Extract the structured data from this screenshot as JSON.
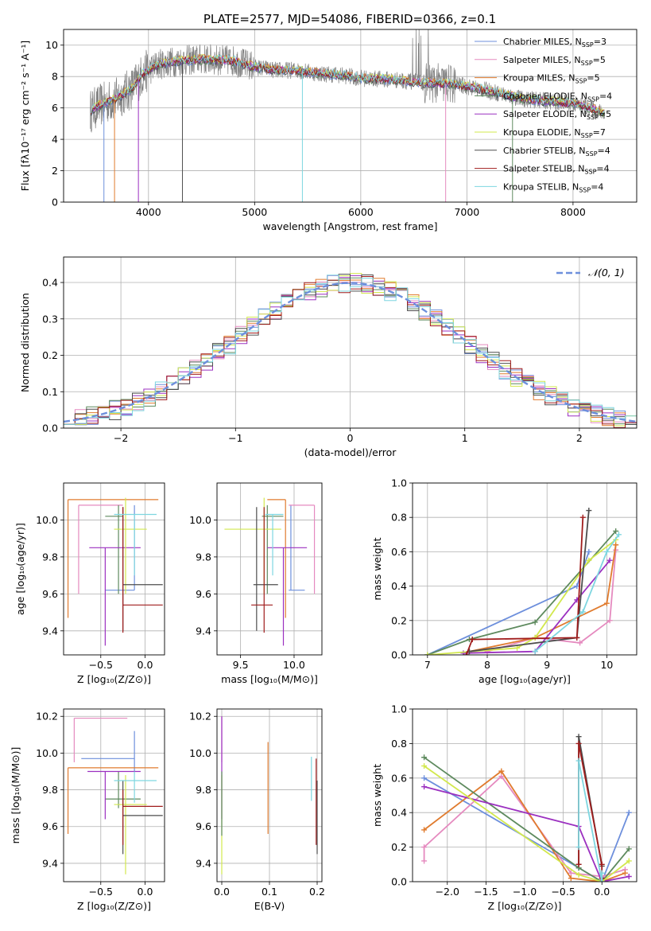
{
  "title": "PLATE=2577, MJD=54086, FIBERID=0366, z=0.1",
  "colors": {
    "Chabrier MILES": "#6d8fdc",
    "Salpeter MILES": "#e58abf",
    "Kroupa MILES": "#e07b2e",
    "Chabrier ELODIE": "#5e8a5e",
    "Salpeter ELODIE": "#9b30c0",
    "Kroupa ELODIE": "#d2e84d",
    "Chabrier STELIB": "#4d4d4d",
    "Salpeter STELIB": "#a01c1c",
    "Kroupa STELIB": "#7ed6e0",
    "spectrum": "#808080",
    "grid": "#b0b0b0"
  },
  "legend1": [
    {
      "prefix": "Chabrier MILES, N",
      "sub": "SSP",
      "suffix": "=3",
      "key": "Chabrier MILES"
    },
    {
      "prefix": "Salpeter MILES, N",
      "sub": "SSP",
      "suffix": "=5",
      "key": "Salpeter MILES"
    },
    {
      "prefix": "Kroupa MILES, N",
      "sub": "SSP",
      "suffix": "=5",
      "key": "Kroupa MILES"
    },
    {
      "prefix": "Chabrier ELODIE, N",
      "sub": "SSP",
      "suffix": "=4",
      "key": "Chabrier ELODIE"
    },
    {
      "prefix": "Salpeter ELODIE, N",
      "sub": "SSP",
      "suffix": "=5",
      "key": "Salpeter ELODIE"
    },
    {
      "prefix": "Kroupa ELODIE, N",
      "sub": "SSP",
      "suffix": "=7",
      "key": "Kroupa ELODIE"
    },
    {
      "prefix": "Chabrier STELIB, N",
      "sub": "SSP",
      "suffix": "=4",
      "key": "Chabrier STELIB"
    },
    {
      "prefix": "Salpeter STELIB, N",
      "sub": "SSP",
      "suffix": "=4",
      "key": "Salpeter STELIB"
    },
    {
      "prefix": "Kroupa STELIB, N",
      "sub": "SSP",
      "suffix": "=4",
      "key": "Kroupa STELIB"
    }
  ],
  "legend2": "𝒩(0, 1)",
  "chart_data": [
    {
      "id": "spectrum",
      "type": "line",
      "xlabel": "wavelength [Angstrom, rest frame]",
      "ylabel": "Flux [fλ10⁻¹⁷ erg cm⁻² s⁻¹ A⁻¹]",
      "xlim": [
        3200,
        8600
      ],
      "ylim": [
        0,
        11
      ],
      "xticks": [
        "4000",
        "5000",
        "6000",
        "7000",
        "8000"
      ],
      "yticks": [
        "0",
        "2",
        "4",
        "6",
        "8",
        "10"
      ],
      "continuum": [
        [
          3450,
          5.8
        ],
        [
          3550,
          6.2
        ],
        [
          3700,
          6.6
        ],
        [
          3850,
          7.3
        ],
        [
          3950,
          8.2
        ],
        [
          4100,
          8.8
        ],
        [
          4300,
          9.0
        ],
        [
          4500,
          9.1
        ],
        [
          4800,
          9.0
        ],
        [
          5000,
          8.6
        ],
        [
          5200,
          8.4
        ],
        [
          5400,
          8.4
        ],
        [
          5600,
          8.2
        ],
        [
          5800,
          8.1
        ],
        [
          6000,
          7.9
        ],
        [
          6300,
          7.8
        ],
        [
          6600,
          7.6
        ],
        [
          6900,
          7.5
        ],
        [
          7200,
          7.1
        ],
        [
          7500,
          6.6
        ],
        [
          7800,
          6.4
        ],
        [
          8000,
          6.3
        ],
        [
          8200,
          5.9
        ],
        [
          8300,
          5.6
        ]
      ],
      "absorption_features": [
        3580,
        3680,
        3905,
        4320,
        5450,
        6800,
        7430
      ]
    },
    {
      "id": "residuals",
      "type": "histogram",
      "xlabel": "(data-model)/error",
      "ylabel": "Normed distribution",
      "xlim": [
        -2.5,
        2.5
      ],
      "ylim": [
        0,
        0.47
      ],
      "xticks": [
        "−2",
        "−1",
        "0",
        "1",
        "2"
      ],
      "yticks": [
        "0.0",
        "0.1",
        "0.2",
        "0.3",
        "0.4"
      ],
      "bin_width": 0.1
    },
    {
      "id": "age_vs_Z",
      "type": "errorbar",
      "xlabel": "Z [log₁₀(Z/Z⊙)]",
      "ylabel": "age  [log₁₀(age/yr)]",
      "xlim": [
        -0.92,
        0.22
      ],
      "ylim": [
        9.27,
        10.2
      ],
      "xticks": [
        "−0.5",
        "0.0"
      ],
      "yticks": [
        "9.4",
        "9.6",
        "9.8",
        "10.0"
      ],
      "points": [
        {
          "s": "Chabrier MILES",
          "x": -0.12,
          "xe": [
            -0.45,
            -0.12
          ],
          "y": 9.62,
          "ye": [
            9.62,
            10.08
          ]
        },
        {
          "s": "Salpeter MILES",
          "x": -0.75,
          "xe": [
            -0.75,
            -0.25
          ],
          "y": 10.08,
          "ye": [
            9.6,
            10.08
          ]
        },
        {
          "s": "Kroupa MILES",
          "x": -0.87,
          "xe": [
            -0.87,
            0.15
          ],
          "y": 10.11,
          "ye": [
            9.47,
            10.11
          ]
        },
        {
          "s": "Chabrier ELODIE",
          "x": -0.3,
          "xe": [
            -0.45,
            -0.25
          ],
          "y": 10.02,
          "ye": [
            9.6,
            10.08
          ]
        },
        {
          "s": "Salpeter ELODIE",
          "x": -0.45,
          "xe": [
            -0.63,
            -0.05
          ],
          "y": 9.85,
          "ye": [
            9.32,
            9.85
          ]
        },
        {
          "s": "Kroupa ELODIE",
          "x": -0.22,
          "xe": [
            -0.35,
            0.02
          ],
          "y": 9.95,
          "ye": [
            9.6,
            10.12
          ]
        },
        {
          "s": "Chabrier STELIB",
          "x": -0.25,
          "xe": [
            -0.25,
            0.2
          ],
          "y": 9.65,
          "ye": [
            9.4,
            10.07
          ]
        },
        {
          "s": "Salpeter STELIB",
          "x": -0.25,
          "xe": [
            -0.25,
            0.2
          ],
          "y": 9.54,
          "ye": [
            9.39,
            10.07
          ]
        },
        {
          "s": "Kroupa STELIB",
          "x": -0.12,
          "xe": [
            -0.35,
            0.13
          ],
          "y": 10.03,
          "ye": [
            9.7,
            10.03
          ]
        }
      ]
    },
    {
      "id": "age_vs_mass",
      "type": "errorbar",
      "xlabel": "mass [log₁₀(M/M⊙)]",
      "ylabel": "",
      "xlim": [
        9.28,
        10.26
      ],
      "ylim": [
        9.27,
        10.2
      ],
      "xticks": [
        "9.5",
        "10.0"
      ],
      "yticks": [
        "9.4",
        "9.6",
        "9.8",
        "10.0"
      ],
      "points": [
        {
          "s": "Chabrier MILES",
          "x": 9.97,
          "xe": [
            9.95,
            10.1
          ],
          "y": 9.62,
          "ye": [
            9.62,
            10.08
          ]
        },
        {
          "s": "Salpeter MILES",
          "x": 10.19,
          "xe": [
            9.95,
            10.19
          ],
          "y": 10.08,
          "ye": [
            9.6,
            10.08
          ]
        },
        {
          "s": "Kroupa MILES",
          "x": 9.92,
          "xe": [
            9.75,
            9.92
          ],
          "y": 10.11,
          "ye": [
            9.47,
            10.11
          ]
        },
        {
          "s": "Chabrier ELODIE",
          "x": 9.75,
          "xe": [
            9.7,
            9.9
          ],
          "y": 10.02,
          "ye": [
            9.6,
            10.08
          ]
        },
        {
          "s": "Salpeter ELODIE",
          "x": 9.9,
          "xe": [
            9.75,
            10.12
          ],
          "y": 9.85,
          "ye": [
            9.32,
            9.85
          ]
        },
        {
          "s": "Kroupa ELODIE",
          "x": 9.72,
          "xe": [
            9.35,
            9.88
          ],
          "y": 9.95,
          "ye": [
            9.6,
            10.12
          ]
        },
        {
          "s": "Chabrier STELIB",
          "x": 9.65,
          "xe": [
            9.62,
            9.85
          ],
          "y": 9.65,
          "ye": [
            9.4,
            10.07
          ]
        },
        {
          "s": "Salpeter STELIB",
          "x": 9.72,
          "xe": [
            9.6,
            9.8
          ],
          "y": 9.54,
          "ye": [
            9.39,
            10.07
          ]
        },
        {
          "s": "Kroupa STELIB",
          "x": 9.8,
          "xe": [
            9.73,
            9.9
          ],
          "y": 10.03,
          "ye": [
            9.7,
            10.03
          ]
        }
      ]
    },
    {
      "id": "weight_vs_age",
      "type": "line",
      "xlabel": "age  [log₁₀(age/yr)]",
      "ylabel": "mass weight",
      "xlim": [
        6.75,
        10.5
      ],
      "ylim": [
        0,
        1
      ],
      "xticks": [
        "7",
        "8",
        "9",
        "10"
      ],
      "yticks": [
        "0.0",
        "0.2",
        "0.4",
        "0.6",
        "0.8",
        "1.0"
      ],
      "series": [
        {
          "s": "Chabrier MILES",
          "x": [
            7.0,
            9.5,
            9.7
          ],
          "y": [
            0.0,
            0.4,
            0.6
          ]
        },
        {
          "s": "Salpeter MILES",
          "x": [
            8.0,
            8.8,
            9.55,
            10.05,
            10.15
          ],
          "y": [
            0.02,
            0.1,
            0.07,
            0.2,
            0.61
          ]
        },
        {
          "s": "Kroupa MILES",
          "x": [
            7.7,
            8.8,
            10.0,
            10.15
          ],
          "y": [
            0.02,
            0.1,
            0.3,
            0.64
          ]
        },
        {
          "s": "Chabrier ELODIE",
          "x": [
            7.0,
            7.7,
            8.8,
            10.15
          ],
          "y": [
            0.0,
            0.09,
            0.19,
            0.72
          ]
        },
        {
          "s": "Salpeter ELODIE",
          "x": [
            7.6,
            8.8,
            9.5,
            10.05
          ],
          "y": [
            0.01,
            0.02,
            0.32,
            0.55
          ]
        },
        {
          "s": "Kroupa ELODIE",
          "x": [
            7.0,
            8.5,
            8.8,
            9.7,
            10.15
          ],
          "y": [
            0.0,
            0.04,
            0.1,
            0.55,
            0.67
          ]
        },
        {
          "s": "Chabrier STELIB",
          "x": [
            7.7,
            9.5,
            9.7
          ],
          "y": [
            0.02,
            0.1,
            0.84
          ]
        },
        {
          "s": "Salpeter STELIB",
          "x": [
            7.65,
            7.75,
            9.5,
            9.6
          ],
          "y": [
            0.0,
            0.09,
            0.1,
            0.8
          ]
        },
        {
          "s": "Kroupa STELIB",
          "x": [
            8.8,
            9.6,
            10.0,
            10.2
          ],
          "y": [
            0.02,
            0.25,
            0.6,
            0.7
          ]
        }
      ]
    },
    {
      "id": "mass_vs_Z",
      "type": "errorbar",
      "xlabel": "Z [log₁₀(Z/Z⊙)]",
      "ylabel": "mass [log₁₀(M/M⊙)]",
      "xlim": [
        -0.92,
        0.22
      ],
      "ylim": [
        9.3,
        10.24
      ],
      "xticks": [
        "−0.5",
        "0.0"
      ],
      "yticks": [
        "9.4",
        "9.6",
        "9.8",
        "10.0",
        "10.2"
      ],
      "points": [
        {
          "s": "Chabrier MILES",
          "x": -0.12,
          "xe": [
            -0.72,
            -0.12
          ],
          "y": 9.97,
          "ye": [
            9.9,
            10.12
          ]
        },
        {
          "s": "Salpeter MILES",
          "x": -0.8,
          "xe": [
            -0.8,
            -0.2
          ],
          "y": 10.19,
          "ye": [
            9.95,
            10.19
          ]
        },
        {
          "s": "Kroupa MILES",
          "x": -0.87,
          "xe": [
            -0.87,
            0.15
          ],
          "y": 9.92,
          "ye": [
            9.56,
            9.92
          ]
        },
        {
          "s": "Chabrier ELODIE",
          "x": -0.3,
          "xe": [
            -0.45,
            -0.05
          ],
          "y": 9.75,
          "ye": [
            9.7,
            9.9
          ]
        },
        {
          "s": "Salpeter ELODIE",
          "x": -0.45,
          "xe": [
            -0.65,
            -0.05
          ],
          "y": 9.9,
          "ye": [
            9.64,
            9.9
          ]
        },
        {
          "s": "Kroupa ELODIE",
          "x": -0.22,
          "xe": [
            -0.35,
            0.02
          ],
          "y": 9.72,
          "ye": [
            9.34,
            9.88
          ]
        },
        {
          "s": "Chabrier STELIB",
          "x": -0.25,
          "xe": [
            -0.25,
            0.2
          ],
          "y": 9.66,
          "ye": [
            9.45,
            9.85
          ]
        },
        {
          "s": "Salpeter STELIB",
          "x": -0.25,
          "xe": [
            -0.25,
            0.2
          ],
          "y": 9.71,
          "ye": [
            9.5,
            9.8
          ]
        },
        {
          "s": "Kroupa STELIB",
          "x": -0.12,
          "xe": [
            -0.35,
            0.13
          ],
          "y": 9.85,
          "ye": [
            9.73,
            9.9
          ]
        }
      ]
    },
    {
      "id": "mass_vs_EBV",
      "type": "errorbar",
      "xlabel": "E(B-V)",
      "ylabel": "",
      "xlim": [
        -0.01,
        0.21
      ],
      "ylim": [
        9.3,
        10.24
      ],
      "xticks": [
        "0.0",
        "0.1",
        "0.2"
      ],
      "yticks": [
        "9.4",
        "9.6",
        "9.8",
        "10.0",
        "10.2"
      ],
      "points": [
        {
          "s": "Salpeter MILES",
          "x": 0.0,
          "ye": [
            9.95,
            10.2
          ]
        },
        {
          "s": "Salpeter ELODIE",
          "x": 0.0,
          "ye": [
            9.64,
            10.2
          ]
        },
        {
          "s": "Kroupa ELODIE",
          "x": 0.0,
          "ye": [
            9.34,
            9.88
          ]
        },
        {
          "s": "Chabrier ELODIE",
          "x": 0.0,
          "ye": [
            9.55,
            9.9
          ]
        },
        {
          "s": "Kroupa MILES",
          "x": 0.097,
          "ye": [
            9.56,
            10.06
          ]
        },
        {
          "s": "Kroupa STELIB",
          "x": 0.188,
          "ye": [
            9.74,
            9.98
          ]
        },
        {
          "s": "Salpeter STELIB",
          "x": 0.198,
          "ye": [
            9.5,
            9.97
          ]
        },
        {
          "s": "Chabrier STELIB",
          "x": 0.2,
          "ye": [
            9.45,
            9.85
          ]
        }
      ]
    },
    {
      "id": "weight_vs_Z",
      "type": "line",
      "xlabel": "Z [log₁₀(Z/Z⊙)]",
      "ylabel": "mass weight",
      "xlim": [
        -2.45,
        0.45
      ],
      "ylim": [
        0,
        1
      ],
      "xticks": [
        "−2.0",
        "−1.5",
        "−1.0",
        "−0.5",
        "0.0"
      ],
      "yticks": [
        "0.0",
        "0.2",
        "0.4",
        "0.6",
        "0.8",
        "1.0"
      ],
      "series": [
        {
          "s": "Chabrier MILES",
          "x": [
            -2.3,
            -0.3,
            0.0,
            0.35
          ],
          "y": [
            0.6,
            0.08,
            0.0,
            0.4
          ]
        },
        {
          "s": "Salpeter MILES",
          "x": [
            -2.3,
            -2.3,
            -1.3,
            -0.4,
            0.0,
            0.3
          ],
          "y": [
            0.12,
            0.2,
            0.61,
            0.05,
            0.03,
            0.07
          ]
        },
        {
          "s": "Kroupa MILES",
          "x": [
            -2.3,
            -1.3,
            -0.4,
            0.0,
            0.3
          ],
          "y": [
            0.3,
            0.64,
            0.02,
            0.0,
            0.05
          ]
        },
        {
          "s": "Chabrier ELODIE",
          "x": [
            -2.3,
            -0.3,
            0.0,
            0.35
          ],
          "y": [
            0.72,
            0.08,
            0.0,
            0.19
          ]
        },
        {
          "s": "Salpeter ELODIE",
          "x": [
            -2.3,
            -0.3,
            0.0,
            0.35
          ],
          "y": [
            0.55,
            0.32,
            0.0,
            0.03
          ]
        },
        {
          "s": "Kroupa ELODIE",
          "x": [
            -2.3,
            -0.3,
            0.0,
            0.35
          ],
          "y": [
            0.67,
            0.04,
            0.0,
            0.12
          ]
        },
        {
          "s": "Chabrier STELIB",
          "x": [
            -0.3,
            -0.3,
            0.0
          ],
          "y": [
            0.1,
            0.84,
            0.09
          ]
        },
        {
          "s": "Salpeter STELIB",
          "x": [
            -0.3,
            -0.3,
            0.0,
            0.0
          ],
          "y": [
            0.1,
            0.8,
            0.1,
            0.02
          ]
        },
        {
          "s": "Kroupa STELIB",
          "x": [
            -0.3,
            -0.3,
            0.0,
            0.0
          ],
          "y": [
            0.2,
            0.7,
            0.0,
            0.05
          ]
        }
      ]
    }
  ]
}
